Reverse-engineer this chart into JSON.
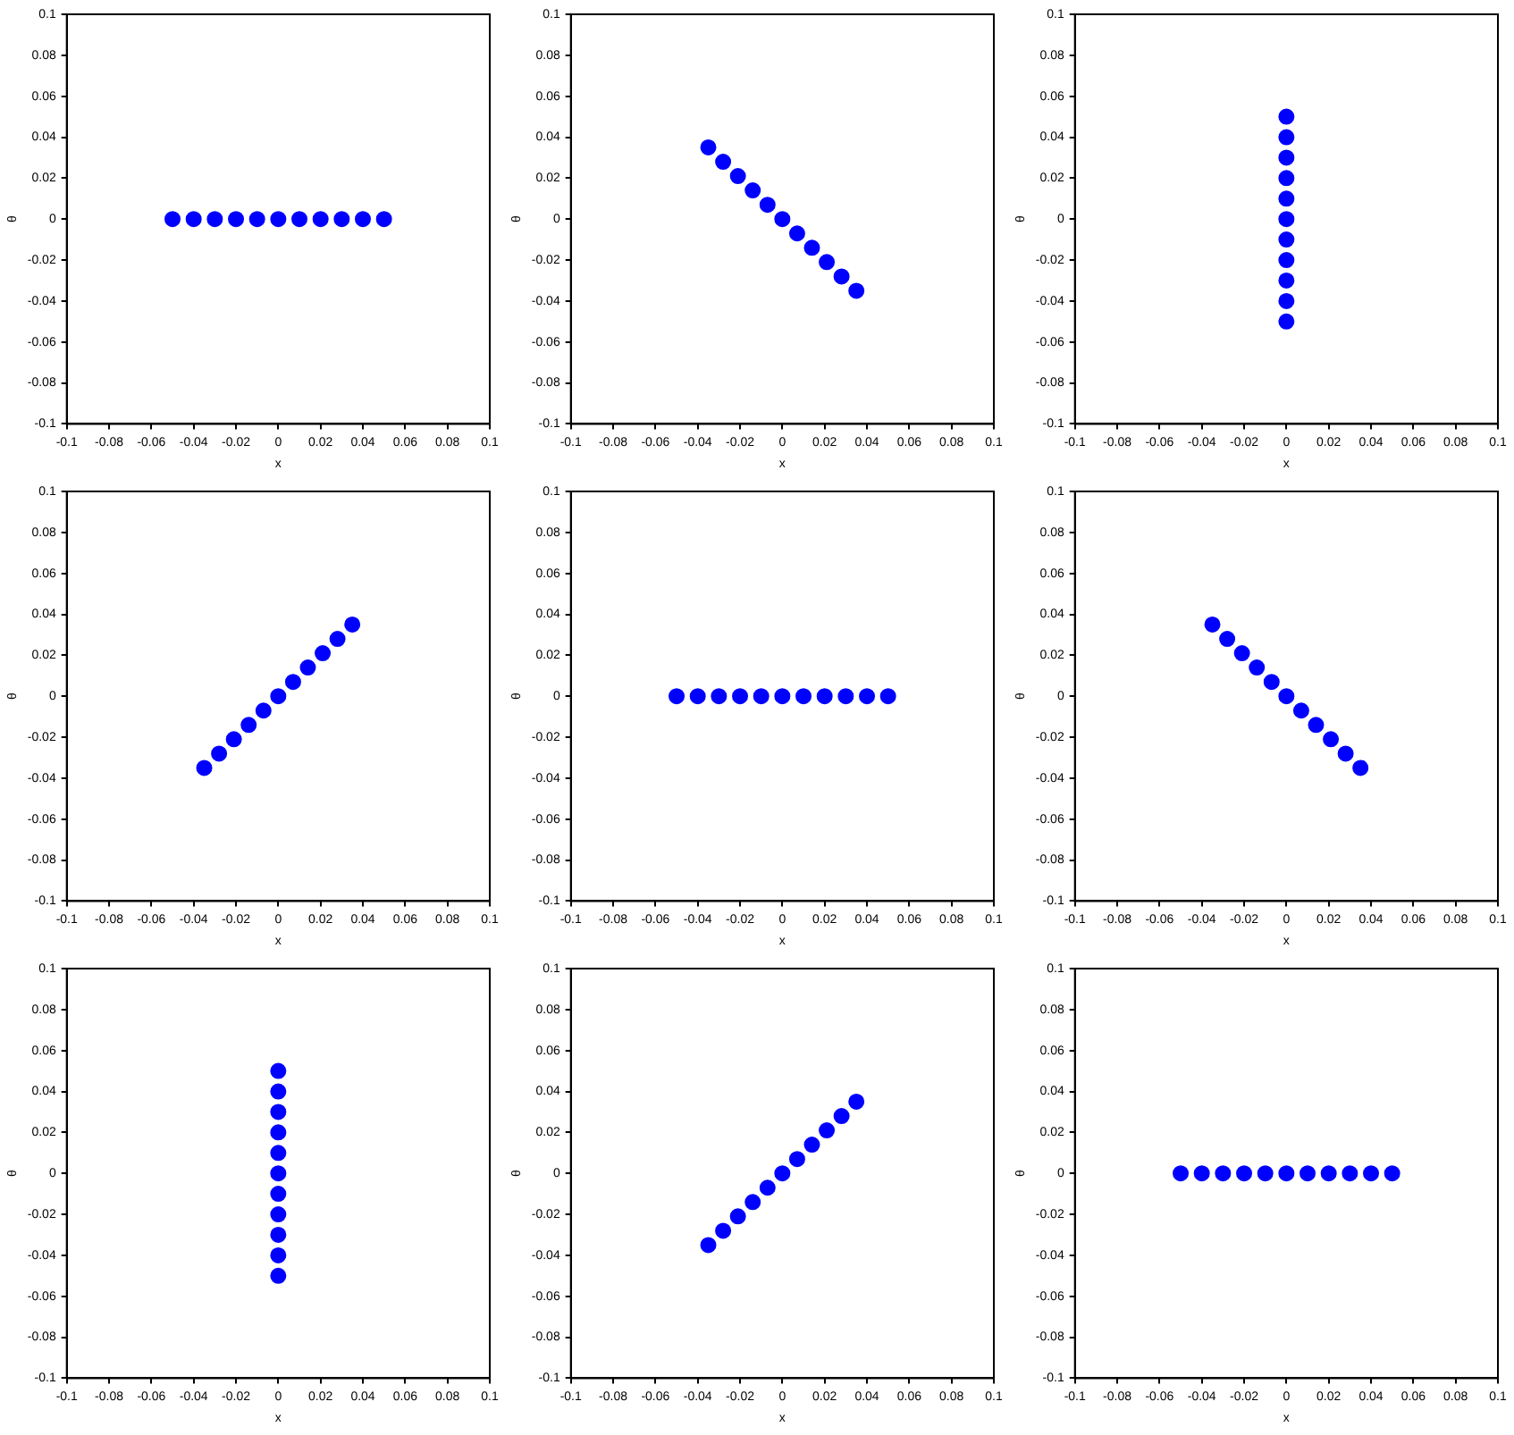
{
  "chart_data": [
    {
      "type": "scatter",
      "xlabel": "x",
      "ylabel": "θ",
      "xlim": [
        -0.1,
        0.1
      ],
      "ylim": [
        -0.1,
        0.1
      ],
      "xticks": [
        -0.1,
        -0.08,
        -0.06,
        -0.04,
        -0.02,
        0,
        0.02,
        0.04,
        0.06,
        0.08,
        0.1
      ],
      "yticks": [
        -0.1,
        -0.08,
        -0.06,
        -0.04,
        -0.02,
        0,
        0.02,
        0.04,
        0.06,
        0.08,
        0.1
      ],
      "grid": false,
      "marker": "circle",
      "series": [
        {
          "color": "#0000ff",
          "x": [
            -0.05,
            -0.04,
            -0.03,
            -0.02,
            -0.01,
            0,
            0.01,
            0.02,
            0.03,
            0.04,
            0.05
          ],
          "values": [
            0,
            0,
            0,
            0,
            0,
            0,
            0,
            0,
            0,
            0,
            0
          ]
        }
      ]
    },
    {
      "type": "scatter",
      "xlabel": "x",
      "ylabel": "θ",
      "xlim": [
        -0.1,
        0.1
      ],
      "ylim": [
        -0.1,
        0.1
      ],
      "xticks": [
        -0.1,
        -0.08,
        -0.06,
        -0.04,
        -0.02,
        0,
        0.02,
        0.04,
        0.06,
        0.08,
        0.1
      ],
      "yticks": [
        -0.1,
        -0.08,
        -0.06,
        -0.04,
        -0.02,
        0,
        0.02,
        0.04,
        0.06,
        0.08,
        0.1
      ],
      "grid": false,
      "marker": "circle",
      "series": [
        {
          "color": "#0000ff",
          "x": [
            -0.035,
            -0.028,
            -0.021,
            -0.014,
            -0.007,
            0,
            0.007,
            0.014,
            0.021,
            0.028,
            0.035
          ],
          "values": [
            0.035,
            0.028,
            0.021,
            0.014,
            0.007,
            0,
            -0.007,
            -0.014,
            -0.021,
            -0.028,
            -0.035
          ]
        }
      ]
    },
    {
      "type": "scatter",
      "xlabel": "x",
      "ylabel": "θ",
      "xlim": [
        -0.1,
        0.1
      ],
      "ylim": [
        -0.1,
        0.1
      ],
      "xticks": [
        -0.1,
        -0.08,
        -0.06,
        -0.04,
        -0.02,
        0,
        0.02,
        0.04,
        0.06,
        0.08,
        0.1
      ],
      "yticks": [
        -0.1,
        -0.08,
        -0.06,
        -0.04,
        -0.02,
        0,
        0.02,
        0.04,
        0.06,
        0.08,
        0.1
      ],
      "grid": false,
      "marker": "circle",
      "series": [
        {
          "color": "#0000ff",
          "x": [
            0,
            0,
            0,
            0,
            0,
            0,
            0,
            0,
            0,
            0,
            0
          ],
          "values": [
            -0.05,
            -0.04,
            -0.03,
            -0.02,
            -0.01,
            0,
            0.01,
            0.02,
            0.03,
            0.04,
            0.05
          ]
        }
      ]
    },
    {
      "type": "scatter",
      "xlabel": "x",
      "ylabel": "θ",
      "xlim": [
        -0.1,
        0.1
      ],
      "ylim": [
        -0.1,
        0.1
      ],
      "xticks": [
        -0.1,
        -0.08,
        -0.06,
        -0.04,
        -0.02,
        0,
        0.02,
        0.04,
        0.06,
        0.08,
        0.1
      ],
      "yticks": [
        -0.1,
        -0.08,
        -0.06,
        -0.04,
        -0.02,
        0,
        0.02,
        0.04,
        0.06,
        0.08,
        0.1
      ],
      "grid": false,
      "marker": "circle",
      "series": [
        {
          "color": "#0000ff",
          "x": [
            -0.035,
            -0.028,
            -0.021,
            -0.014,
            -0.007,
            0,
            0.007,
            0.014,
            0.021,
            0.028,
            0.035
          ],
          "values": [
            -0.035,
            -0.028,
            -0.021,
            -0.014,
            -0.007,
            0,
            0.007,
            0.014,
            0.021,
            0.028,
            0.035
          ]
        }
      ]
    },
    {
      "type": "scatter",
      "xlabel": "x",
      "ylabel": "θ",
      "xlim": [
        -0.1,
        0.1
      ],
      "ylim": [
        -0.1,
        0.1
      ],
      "xticks": [
        -0.1,
        -0.08,
        -0.06,
        -0.04,
        -0.02,
        0,
        0.02,
        0.04,
        0.06,
        0.08,
        0.1
      ],
      "yticks": [
        -0.1,
        -0.08,
        -0.06,
        -0.04,
        -0.02,
        0,
        0.02,
        0.04,
        0.06,
        0.08,
        0.1
      ],
      "grid": false,
      "marker": "circle",
      "series": [
        {
          "color": "#0000ff",
          "x": [
            -0.05,
            -0.04,
            -0.03,
            -0.02,
            -0.01,
            0,
            0.01,
            0.02,
            0.03,
            0.04,
            0.05
          ],
          "values": [
            0,
            0,
            0,
            0,
            0,
            0,
            0,
            0,
            0,
            0,
            0
          ]
        }
      ]
    },
    {
      "type": "scatter",
      "xlabel": "x",
      "ylabel": "θ",
      "xlim": [
        -0.1,
        0.1
      ],
      "ylim": [
        -0.1,
        0.1
      ],
      "xticks": [
        -0.1,
        -0.08,
        -0.06,
        -0.04,
        -0.02,
        0,
        0.02,
        0.04,
        0.06,
        0.08,
        0.1
      ],
      "yticks": [
        -0.1,
        -0.08,
        -0.06,
        -0.04,
        -0.02,
        0,
        0.02,
        0.04,
        0.06,
        0.08,
        0.1
      ],
      "grid": false,
      "marker": "circle",
      "series": [
        {
          "color": "#0000ff",
          "x": [
            -0.035,
            -0.028,
            -0.021,
            -0.014,
            -0.007,
            0,
            0.007,
            0.014,
            0.021,
            0.028,
            0.035
          ],
          "values": [
            0.035,
            0.028,
            0.021,
            0.014,
            0.007,
            0,
            -0.007,
            -0.014,
            -0.021,
            -0.028,
            -0.035
          ]
        }
      ]
    },
    {
      "type": "scatter",
      "xlabel": "x",
      "ylabel": "θ",
      "xlim": [
        -0.1,
        0.1
      ],
      "ylim": [
        -0.1,
        0.1
      ],
      "xticks": [
        -0.1,
        -0.08,
        -0.06,
        -0.04,
        -0.02,
        0,
        0.02,
        0.04,
        0.06,
        0.08,
        0.1
      ],
      "yticks": [
        -0.1,
        -0.08,
        -0.06,
        -0.04,
        -0.02,
        0,
        0.02,
        0.04,
        0.06,
        0.08,
        0.1
      ],
      "grid": false,
      "marker": "circle",
      "series": [
        {
          "color": "#0000ff",
          "x": [
            0,
            0,
            0,
            0,
            0,
            0,
            0,
            0,
            0,
            0,
            0
          ],
          "values": [
            -0.05,
            -0.04,
            -0.03,
            -0.02,
            -0.01,
            0,
            0.01,
            0.02,
            0.03,
            0.04,
            0.05
          ]
        }
      ]
    },
    {
      "type": "scatter",
      "xlabel": "x",
      "ylabel": "θ",
      "xlim": [
        -0.1,
        0.1
      ],
      "ylim": [
        -0.1,
        0.1
      ],
      "xticks": [
        -0.1,
        -0.08,
        -0.06,
        -0.04,
        -0.02,
        0,
        0.02,
        0.04,
        0.06,
        0.08,
        0.1
      ],
      "yticks": [
        -0.1,
        -0.08,
        -0.06,
        -0.04,
        -0.02,
        0,
        0.02,
        0.04,
        0.06,
        0.08,
        0.1
      ],
      "grid": false,
      "marker": "circle",
      "series": [
        {
          "color": "#0000ff",
          "x": [
            -0.035,
            -0.028,
            -0.021,
            -0.014,
            -0.007,
            0,
            0.007,
            0.014,
            0.021,
            0.028,
            0.035
          ],
          "values": [
            -0.035,
            -0.028,
            -0.021,
            -0.014,
            -0.007,
            0,
            0.007,
            0.014,
            0.021,
            0.028,
            0.035
          ]
        }
      ]
    },
    {
      "type": "scatter",
      "xlabel": "x",
      "ylabel": "θ",
      "xlim": [
        -0.1,
        0.1
      ],
      "ylim": [
        -0.1,
        0.1
      ],
      "xticks": [
        -0.1,
        -0.08,
        -0.06,
        -0.04,
        -0.02,
        0,
        0.02,
        0.04,
        0.06,
        0.08,
        0.1
      ],
      "yticks": [
        -0.1,
        -0.08,
        -0.06,
        -0.04,
        -0.02,
        0,
        0.02,
        0.04,
        0.06,
        0.08,
        0.1
      ],
      "grid": false,
      "marker": "circle",
      "series": [
        {
          "color": "#0000ff",
          "x": [
            -0.05,
            -0.04,
            -0.03,
            -0.02,
            -0.01,
            0,
            0.01,
            0.02,
            0.03,
            0.04,
            0.05
          ],
          "values": [
            0,
            0,
            0,
            0,
            0,
            0,
            0,
            0,
            0,
            0,
            0
          ]
        }
      ]
    }
  ]
}
